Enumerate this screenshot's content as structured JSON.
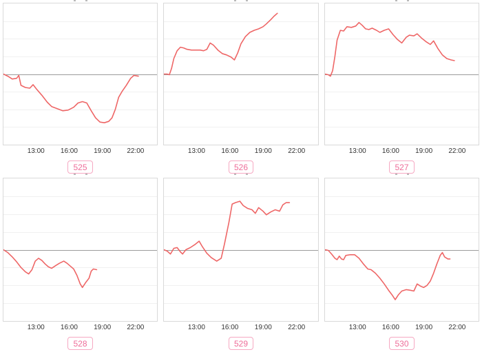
{
  "colors": {
    "line": "#ee6666",
    "zero_line": "#9a9a9a",
    "grid_line": "#f0f0f0",
    "box_border": "#d9d9d9",
    "tick_text": "#333333",
    "badge_text": "#ee6d99",
    "badge_border": "#f6a8c2",
    "background": "#ffffff"
  },
  "axis": {
    "hour_range": [
      10,
      24
    ],
    "ticks": [
      {
        "label": "13:00",
        "hour": 13
      },
      {
        "label": "16:00",
        "hour": 16
      },
      {
        "label": "19:00",
        "hour": 19
      },
      {
        "label": "22:00",
        "hour": 22
      }
    ]
  },
  "chart_data": [
    {
      "type": "line",
      "title": "",
      "label": "525",
      "x_unit": "time-of-day (hours)",
      "x_ticks": [
        "13:00",
        "16:00",
        "19:00",
        "22:00"
      ],
      "x_range_hours": [
        10,
        24
      ],
      "y_range": [
        -1,
        1
      ],
      "baseline": 0,
      "grid": true,
      "legend": "none",
      "points": [
        [
          10.0,
          0.0
        ],
        [
          10.4,
          -0.03
        ],
        [
          10.8,
          -0.07
        ],
        [
          11.2,
          -0.06
        ],
        [
          11.4,
          -0.02
        ],
        [
          11.6,
          -0.16
        ],
        [
          12.0,
          -0.19
        ],
        [
          12.4,
          -0.2
        ],
        [
          12.7,
          -0.15
        ],
        [
          13.0,
          -0.21
        ],
        [
          13.5,
          -0.3
        ],
        [
          14.0,
          -0.4
        ],
        [
          14.4,
          -0.46
        ],
        [
          14.9,
          -0.49
        ],
        [
          15.4,
          -0.52
        ],
        [
          15.9,
          -0.51
        ],
        [
          16.4,
          -0.47
        ],
        [
          16.8,
          -0.41
        ],
        [
          17.2,
          -0.39
        ],
        [
          17.6,
          -0.41
        ],
        [
          18.0,
          -0.52
        ],
        [
          18.4,
          -0.62
        ],
        [
          18.8,
          -0.68
        ],
        [
          19.2,
          -0.69
        ],
        [
          19.6,
          -0.67
        ],
        [
          19.9,
          -0.62
        ],
        [
          20.2,
          -0.5
        ],
        [
          20.5,
          -0.33
        ],
        [
          20.8,
          -0.25
        ],
        [
          21.2,
          -0.16
        ],
        [
          21.6,
          -0.06
        ],
        [
          21.9,
          -0.02
        ],
        [
          22.3,
          -0.03
        ]
      ]
    },
    {
      "type": "line",
      "title": "",
      "label": "526",
      "x_unit": "time-of-day (hours)",
      "x_ticks": [
        "13:00",
        "16:00",
        "19:00",
        "22:00"
      ],
      "x_range_hours": [
        10,
        24
      ],
      "y_range": [
        -1,
        1
      ],
      "baseline": 0,
      "grid": true,
      "legend": "none",
      "points": [
        [
          10.0,
          0.0
        ],
        [
          10.3,
          0.0
        ],
        [
          10.5,
          -0.01
        ],
        [
          10.7,
          0.08
        ],
        [
          10.9,
          0.22
        ],
        [
          11.2,
          0.33
        ],
        [
          11.5,
          0.38
        ],
        [
          11.8,
          0.37
        ],
        [
          12.1,
          0.35
        ],
        [
          12.5,
          0.34
        ],
        [
          12.9,
          0.34
        ],
        [
          13.3,
          0.34
        ],
        [
          13.6,
          0.33
        ],
        [
          13.9,
          0.35
        ],
        [
          14.2,
          0.44
        ],
        [
          14.5,
          0.41
        ],
        [
          14.9,
          0.34
        ],
        [
          15.3,
          0.29
        ],
        [
          15.7,
          0.27
        ],
        [
          16.1,
          0.24
        ],
        [
          16.4,
          0.2
        ],
        [
          16.7,
          0.3
        ],
        [
          17.0,
          0.43
        ],
        [
          17.4,
          0.53
        ],
        [
          17.8,
          0.59
        ],
        [
          18.2,
          0.62
        ],
        [
          18.6,
          0.64
        ],
        [
          19.0,
          0.67
        ],
        [
          19.3,
          0.71
        ],
        [
          19.7,
          0.77
        ],
        [
          20.0,
          0.82
        ],
        [
          20.3,
          0.86
        ]
      ]
    },
    {
      "type": "line",
      "title": "",
      "label": "527",
      "x_unit": "time-of-day (hours)",
      "x_ticks": [
        "13:00",
        "16:00",
        "19:00",
        "22:00"
      ],
      "x_range_hours": [
        10,
        24
      ],
      "y_range": [
        -1,
        1
      ],
      "baseline": 0,
      "grid": true,
      "legend": "none",
      "points": [
        [
          10.0,
          0.0
        ],
        [
          10.3,
          -0.01
        ],
        [
          10.5,
          -0.03
        ],
        [
          10.7,
          0.05
        ],
        [
          10.9,
          0.25
        ],
        [
          11.1,
          0.48
        ],
        [
          11.4,
          0.62
        ],
        [
          11.7,
          0.61
        ],
        [
          12.0,
          0.67
        ],
        [
          12.4,
          0.66
        ],
        [
          12.8,
          0.68
        ],
        [
          13.1,
          0.73
        ],
        [
          13.4,
          0.69
        ],
        [
          13.7,
          0.64
        ],
        [
          14.0,
          0.63
        ],
        [
          14.3,
          0.65
        ],
        [
          14.7,
          0.62
        ],
        [
          15.0,
          0.59
        ],
        [
          15.4,
          0.62
        ],
        [
          15.8,
          0.64
        ],
        [
          16.2,
          0.56
        ],
        [
          16.6,
          0.49
        ],
        [
          17.0,
          0.44
        ],
        [
          17.4,
          0.52
        ],
        [
          17.7,
          0.55
        ],
        [
          18.1,
          0.54
        ],
        [
          18.4,
          0.57
        ],
        [
          18.8,
          0.51
        ],
        [
          19.2,
          0.46
        ],
        [
          19.6,
          0.42
        ],
        [
          19.9,
          0.47
        ],
        [
          20.3,
          0.36
        ],
        [
          20.7,
          0.27
        ],
        [
          21.1,
          0.22
        ],
        [
          21.5,
          0.2
        ],
        [
          21.8,
          0.19
        ]
      ]
    },
    {
      "type": "line",
      "title": "",
      "label": "528",
      "x_unit": "time-of-day (hours)",
      "x_ticks": [
        "13:00",
        "16:00",
        "19:00",
        "22:00"
      ],
      "x_range_hours": [
        10,
        24
      ],
      "y_range": [
        -1,
        1
      ],
      "baseline": 0,
      "grid": true,
      "legend": "none",
      "points": [
        [
          10.0,
          0.0
        ],
        [
          10.4,
          -0.04
        ],
        [
          10.8,
          -0.1
        ],
        [
          11.2,
          -0.17
        ],
        [
          11.6,
          -0.25
        ],
        [
          12.0,
          -0.31
        ],
        [
          12.3,
          -0.34
        ],
        [
          12.6,
          -0.28
        ],
        [
          12.9,
          -0.16
        ],
        [
          13.2,
          -0.12
        ],
        [
          13.5,
          -0.15
        ],
        [
          13.8,
          -0.2
        ],
        [
          14.1,
          -0.24
        ],
        [
          14.4,
          -0.26
        ],
        [
          14.8,
          -0.22
        ],
        [
          15.1,
          -0.19
        ],
        [
          15.5,
          -0.16
        ],
        [
          15.8,
          -0.19
        ],
        [
          16.1,
          -0.23
        ],
        [
          16.4,
          -0.27
        ],
        [
          16.7,
          -0.36
        ],
        [
          17.0,
          -0.48
        ],
        [
          17.2,
          -0.53
        ],
        [
          17.5,
          -0.46
        ],
        [
          17.8,
          -0.4
        ],
        [
          18.0,
          -0.3
        ],
        [
          18.2,
          -0.27
        ],
        [
          18.5,
          -0.28
        ]
      ]
    },
    {
      "type": "line",
      "title": "",
      "label": "529",
      "x_unit": "time-of-day (hours)",
      "x_ticks": [
        "13:00",
        "16:00",
        "19:00",
        "22:00"
      ],
      "x_range_hours": [
        10,
        24
      ],
      "y_range": [
        -1,
        1
      ],
      "baseline": 0,
      "grid": true,
      "legend": "none",
      "points": [
        [
          10.0,
          0.0
        ],
        [
          10.3,
          -0.02
        ],
        [
          10.6,
          -0.06
        ],
        [
          10.9,
          0.02
        ],
        [
          11.2,
          0.03
        ],
        [
          11.5,
          -0.03
        ],
        [
          11.7,
          -0.06
        ],
        [
          12.0,
          0.0
        ],
        [
          12.4,
          0.03
        ],
        [
          12.8,
          0.07
        ],
        [
          13.2,
          0.12
        ],
        [
          13.5,
          0.04
        ],
        [
          13.9,
          -0.05
        ],
        [
          14.3,
          -0.11
        ],
        [
          14.8,
          -0.16
        ],
        [
          15.2,
          -0.12
        ],
        [
          15.5,
          0.08
        ],
        [
          15.9,
          0.38
        ],
        [
          16.2,
          0.64
        ],
        [
          16.5,
          0.66
        ],
        [
          16.9,
          0.68
        ],
        [
          17.2,
          0.62
        ],
        [
          17.6,
          0.58
        ],
        [
          18.0,
          0.56
        ],
        [
          18.3,
          0.51
        ],
        [
          18.6,
          0.59
        ],
        [
          19.0,
          0.54
        ],
        [
          19.3,
          0.49
        ],
        [
          19.7,
          0.53
        ],
        [
          20.1,
          0.56
        ],
        [
          20.5,
          0.54
        ],
        [
          20.8,
          0.63
        ],
        [
          21.1,
          0.66
        ],
        [
          21.4,
          0.66
        ]
      ]
    },
    {
      "type": "line",
      "title": "",
      "label": "530",
      "x_unit": "time-of-day (hours)",
      "x_ticks": [
        "13:00",
        "16:00",
        "19:00",
        "22:00"
      ],
      "x_range_hours": [
        10,
        24
      ],
      "y_range": [
        -1,
        1
      ],
      "baseline": 0,
      "grid": true,
      "legend": "none",
      "points": [
        [
          10.0,
          0.0
        ],
        [
          10.3,
          -0.01
        ],
        [
          10.6,
          -0.06
        ],
        [
          10.9,
          -0.12
        ],
        [
          11.1,
          -0.14
        ],
        [
          11.3,
          -0.09
        ],
        [
          11.5,
          -0.13
        ],
        [
          11.7,
          -0.14
        ],
        [
          11.9,
          -0.08
        ],
        [
          12.3,
          -0.07
        ],
        [
          12.7,
          -0.07
        ],
        [
          13.1,
          -0.12
        ],
        [
          13.5,
          -0.2
        ],
        [
          13.9,
          -0.27
        ],
        [
          14.2,
          -0.28
        ],
        [
          14.6,
          -0.33
        ],
        [
          15.0,
          -0.4
        ],
        [
          15.4,
          -0.48
        ],
        [
          15.8,
          -0.57
        ],
        [
          16.1,
          -0.63
        ],
        [
          16.4,
          -0.7
        ],
        [
          16.7,
          -0.63
        ],
        [
          17.0,
          -0.58
        ],
        [
          17.4,
          -0.56
        ],
        [
          17.8,
          -0.57
        ],
        [
          18.1,
          -0.58
        ],
        [
          18.4,
          -0.48
        ],
        [
          18.7,
          -0.51
        ],
        [
          19.0,
          -0.53
        ],
        [
          19.3,
          -0.5
        ],
        [
          19.6,
          -0.44
        ],
        [
          19.9,
          -0.33
        ],
        [
          20.2,
          -0.2
        ],
        [
          20.5,
          -0.08
        ],
        [
          20.7,
          -0.04
        ],
        [
          20.9,
          -0.1
        ],
        [
          21.2,
          -0.13
        ],
        [
          21.4,
          -0.13
        ]
      ]
    }
  ]
}
